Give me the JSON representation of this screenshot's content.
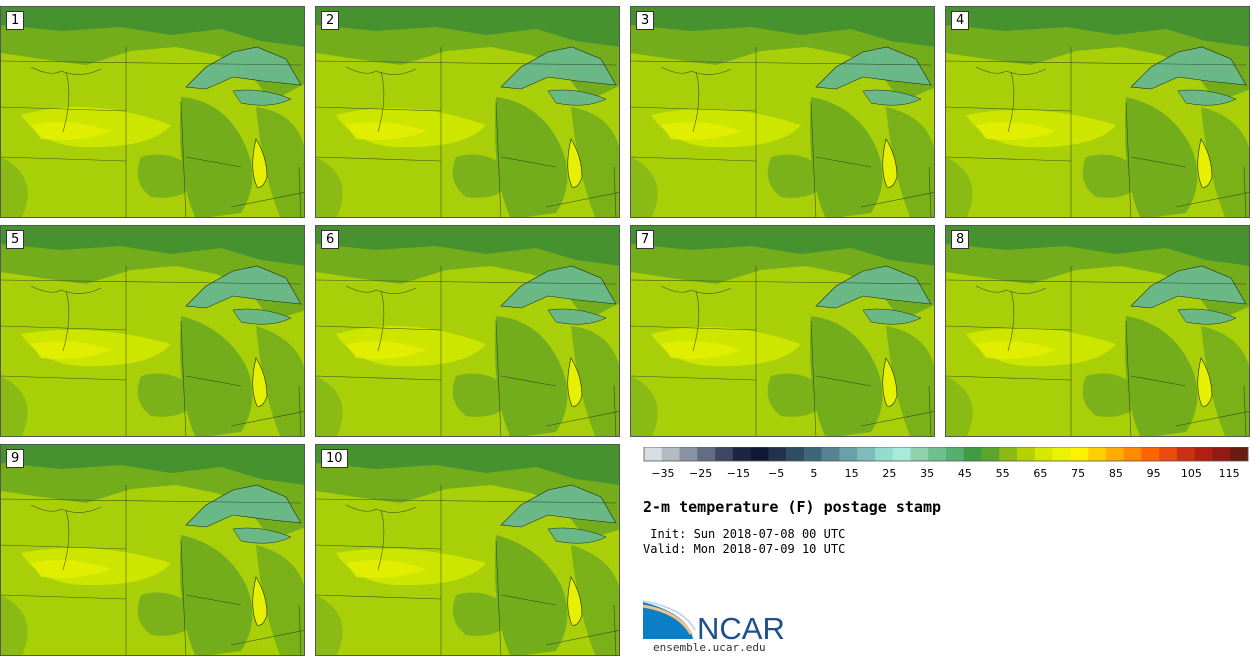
{
  "title": "2-m temperature (F) postage stamp",
  "init": " Init: Sun 2018-07-08 00 UTC",
  "valid": "Valid: Mon 2018-07-09 10 UTC",
  "members": [
    "1",
    "2",
    "3",
    "4",
    "5",
    "6",
    "7",
    "8",
    "9",
    "10"
  ],
  "colorbar": {
    "tick_labels": [
      "−35",
      "−25",
      "−15",
      "−5",
      "5",
      "15",
      "25",
      "35",
      "45",
      "55",
      "65",
      "75",
      "85",
      "95",
      "105",
      "115"
    ],
    "min": -40,
    "max": 120,
    "step": 5,
    "colors": [
      "#d6dde3",
      "#b2bac4",
      "#8a93a3",
      "#636d82",
      "#3e4863",
      "#1c2541",
      "#0e1a33",
      "#23324a",
      "#2f4d63",
      "#3f6579",
      "#56838f",
      "#6aa0a7",
      "#7fbcbc",
      "#94dcd0",
      "#a6ebdb",
      "#8ed2b0",
      "#6ec08e",
      "#57ae70",
      "#3f9a43",
      "#5aa52b",
      "#89bb12",
      "#b5d200",
      "#d6e800",
      "#ecf300",
      "#fff200",
      "#ffd000",
      "#ffac00",
      "#ff8a00",
      "#ff6400",
      "#e84a10",
      "#cc3012",
      "#b21e14",
      "#921a14",
      "#6b1c10"
    ]
  },
  "map_colors": {
    "cool": "#46922e",
    "mid": "#74ad1c",
    "base": "#a8cf08",
    "warm": "#cde600",
    "hot": "#e6f000",
    "lake": "#6ab886",
    "border": "#1d2a1d"
  },
  "logo_text": "NCAR",
  "url": "ensemble.ucar.edu"
}
